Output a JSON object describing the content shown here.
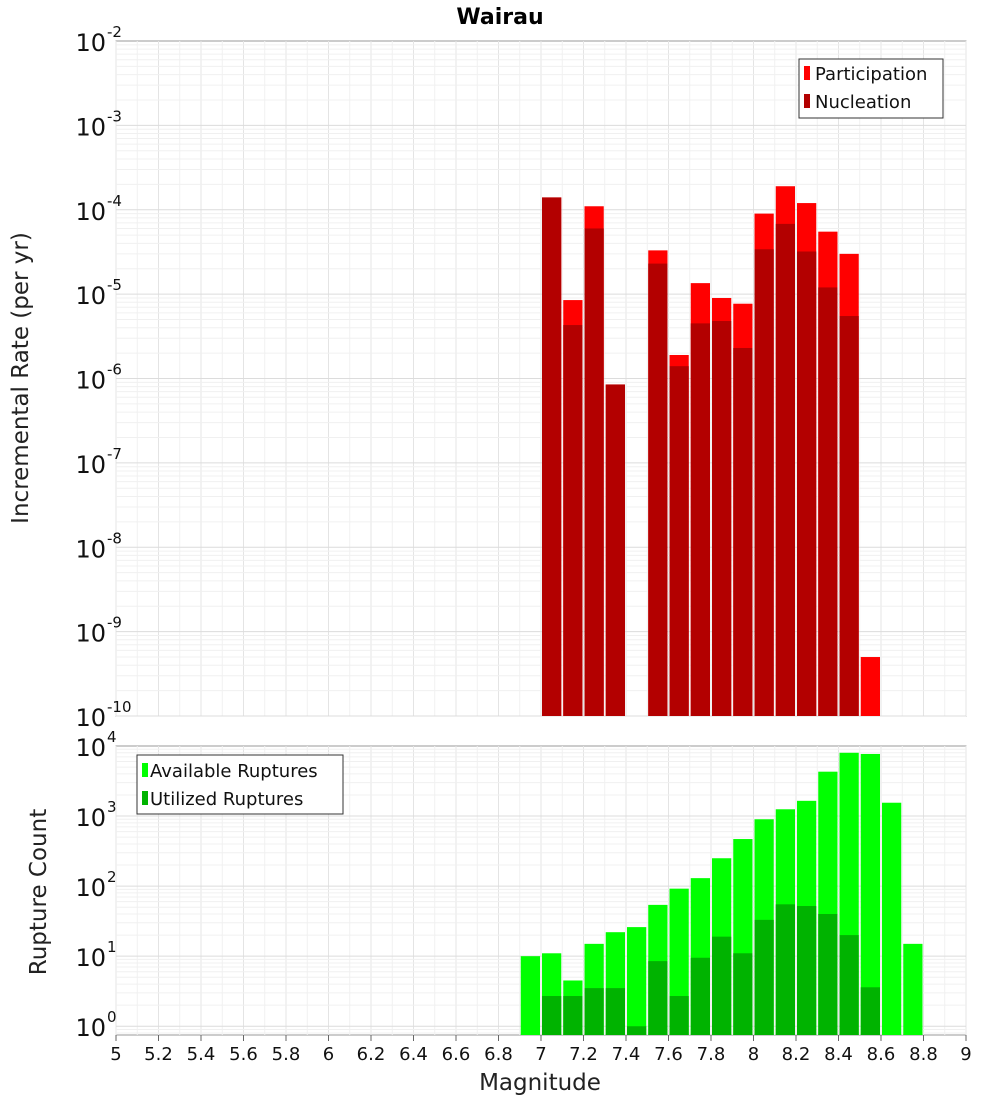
{
  "chart_data": [
    {
      "type": "bar",
      "panel": "top",
      "title": "Wairau",
      "xlabel": "",
      "ylabel": "Incremental Rate (per yr)",
      "yscale": "log",
      "ylim": [
        1e-10,
        0.01
      ],
      "xlim": [
        5,
        9
      ],
      "yticks": [
        {
          "base": "10",
          "exp": "-2",
          "value": 0.01
        },
        {
          "base": "10",
          "exp": "-3",
          "value": 0.001
        },
        {
          "base": "10",
          "exp": "-4",
          "value": 0.0001
        },
        {
          "base": "10",
          "exp": "-5",
          "value": 1e-05
        },
        {
          "base": "10",
          "exp": "-6",
          "value": 1e-06
        },
        {
          "base": "10",
          "exp": "-7",
          "value": 1e-07
        },
        {
          "base": "10",
          "exp": "-8",
          "value": 1e-08
        },
        {
          "base": "10",
          "exp": "-9",
          "value": 1e-09
        },
        {
          "base": "10",
          "exp": "-10",
          "value": 1e-10
        }
      ],
      "legend_position": "top-right",
      "colors": {
        "Participation": "#ff0000",
        "Nucleation": "#b30000"
      },
      "series": [
        {
          "name": "Participation",
          "x": [
            7.05,
            7.15,
            7.25,
            7.35,
            7.55,
            7.65,
            7.75,
            7.85,
            7.95,
            8.05,
            8.15,
            8.25,
            8.35,
            8.45,
            8.55
          ],
          "values": [
            0.00014,
            8.5e-06,
            0.00011,
            8.5e-07,
            3.3e-05,
            1.9e-06,
            1.35e-05,
            9e-06,
            7.7e-06,
            9e-05,
            0.00019,
            0.00012,
            5.5e-05,
            3e-05,
            5e-10
          ]
        },
        {
          "name": "Nucleation",
          "x": [
            7.05,
            7.15,
            7.25,
            7.35,
            7.55,
            7.65,
            7.75,
            7.85,
            7.95,
            8.05,
            8.15,
            8.25,
            8.35,
            8.45
          ],
          "values": [
            0.00014,
            4.3e-06,
            6e-05,
            8.5e-07,
            2.3e-05,
            1.4e-06,
            4.5e-06,
            4.8e-06,
            2.3e-06,
            3.4e-05,
            6.8e-05,
            3.2e-05,
            1.2e-05,
            5.5e-06
          ]
        }
      ]
    },
    {
      "type": "bar",
      "panel": "bottom",
      "title": "",
      "xlabel": "Magnitude",
      "ylabel": "Rupture Count",
      "yscale": "log",
      "ylim": [
        0.75,
        10000
      ],
      "xlim": [
        5,
        9
      ],
      "yticks": [
        {
          "base": "10",
          "exp": "4",
          "value": 10000
        },
        {
          "base": "10",
          "exp": "3",
          "value": 1000
        },
        {
          "base": "10",
          "exp": "2",
          "value": 100
        },
        {
          "base": "10",
          "exp": "1",
          "value": 10
        },
        {
          "base": "10",
          "exp": "0",
          "value": 1
        }
      ],
      "xticks": [
        "5",
        "5.2",
        "5.4",
        "5.6",
        "5.8",
        "6",
        "6.2",
        "6.4",
        "6.6",
        "6.8",
        "7",
        "7.2",
        "7.4",
        "7.6",
        "7.8",
        "8",
        "8.2",
        "8.4",
        "8.6",
        "8.8",
        "9"
      ],
      "legend_position": "top-left",
      "colors": {
        "Available Ruptures": "#00ff00",
        "Utilized Ruptures": "#00b300"
      },
      "series": [
        {
          "name": "Available Ruptures",
          "x": [
            6.95,
            7.05,
            7.15,
            7.25,
            7.35,
            7.45,
            7.55,
            7.65,
            7.75,
            7.85,
            7.95,
            8.05,
            8.15,
            8.25,
            8.35,
            8.45,
            8.55,
            8.65,
            8.75
          ],
          "values": [
            10,
            11,
            4.5,
            15,
            22,
            26,
            54,
            92,
            130,
            250,
            470,
            900,
            1250,
            1650,
            4300,
            8000,
            7700,
            1550,
            15
          ]
        },
        {
          "name": "Utilized Ruptures",
          "x": [
            7.05,
            7.15,
            7.25,
            7.35,
            7.45,
            7.55,
            7.65,
            7.75,
            7.85,
            7.95,
            8.05,
            8.15,
            8.25,
            8.35,
            8.45,
            8.55
          ],
          "values": [
            2.7,
            2.7,
            3.5,
            3.5,
            1,
            8.5,
            2.7,
            9.5,
            19,
            11,
            33,
            55,
            52,
            40,
            20,
            3.6
          ]
        }
      ]
    }
  ]
}
